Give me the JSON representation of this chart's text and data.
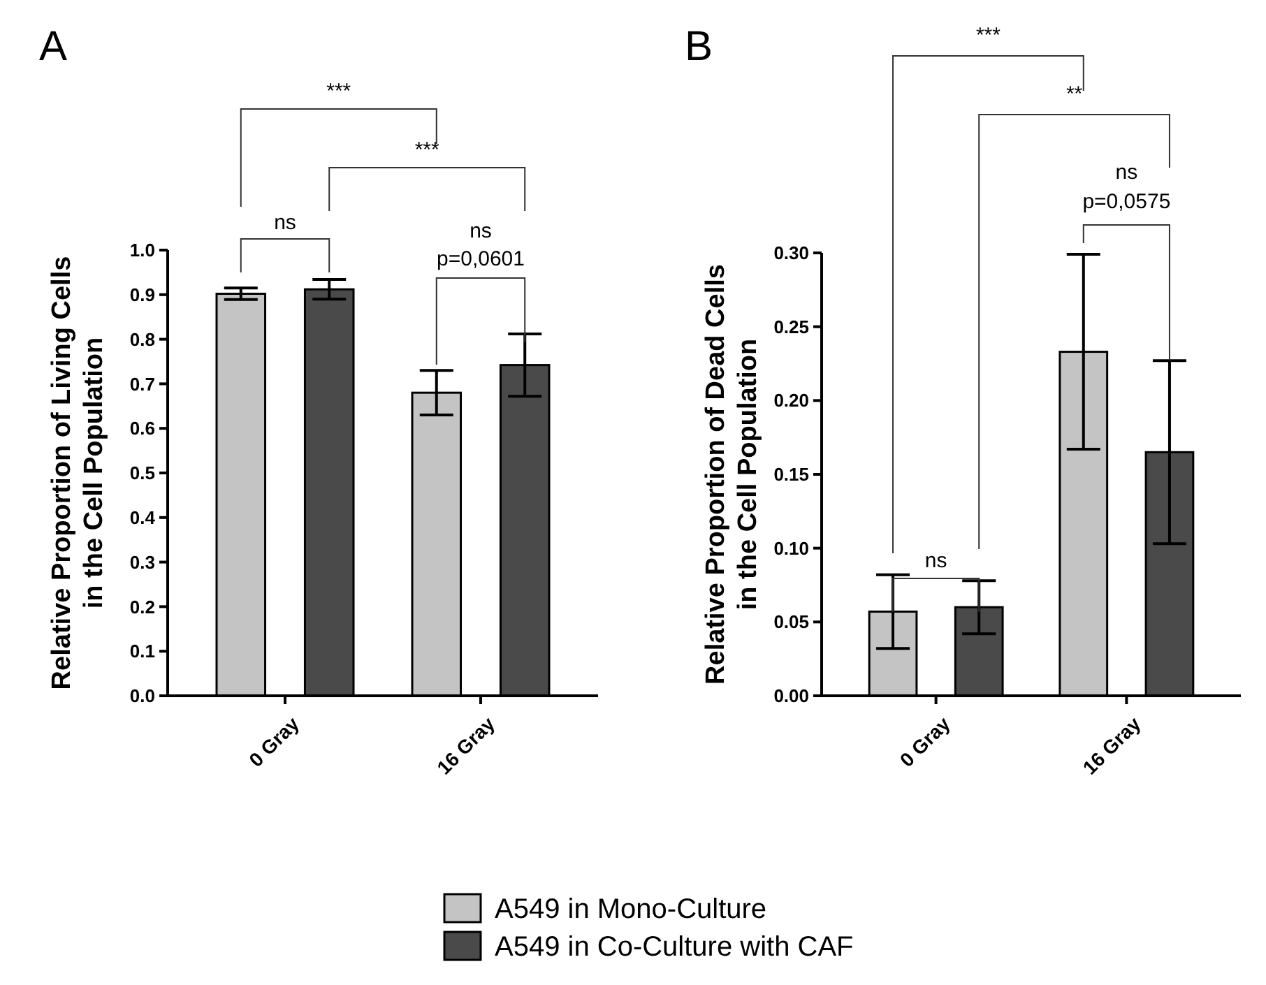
{
  "chart_data": [
    {
      "type": "bar",
      "title": "A",
      "ylabel": "Relative Proportion of Living Cells\nin the Cell Population",
      "categories": [
        "0 Gray",
        "16 Gray"
      ],
      "series": [
        {
          "name": "A549 in Mono-Culture",
          "color": "#c4c4c4",
          "values": [
            0.902,
            0.68
          ],
          "errors": [
            0.013,
            0.05
          ]
        },
        {
          "name": "A549 in Co-Culture with CAF",
          "color": "#4a4a4a",
          "values": [
            0.912,
            0.742
          ],
          "errors": [
            0.022,
            0.07
          ]
        }
      ],
      "ylim": [
        0,
        1
      ],
      "yticks": [
        {
          "value": 0,
          "label": "0.0"
        },
        0.1,
        0.2,
        0.3,
        0.4,
        0.5,
        0.6,
        0.7,
        0.8,
        0.9,
        {
          "value": 1,
          "label": "1.0"
        }
      ],
      "annotations": [
        "***",
        "***",
        "ns",
        "ns",
        "p=0,0601"
      ],
      "legend": "bottom",
      "grid": false
    },
    {
      "type": "bar",
      "title": "B",
      "ylabel": "Relative Proportion of Dead Cells\nin the Cell Population",
      "categories": [
        "0 Gray",
        "16 Gray"
      ],
      "series": [
        {
          "color": "#c4c4c4",
          "values": [
            0.057,
            0.233
          ],
          "errors": [
            0.025,
            0.066
          ]
        },
        {
          "color": "#4a4a4a",
          "values": [
            0.06,
            0.165
          ],
          "errors": [
            0.018,
            0.062
          ]
        }
      ],
      "ylim": [
        0,
        0.3
      ],
      "yticks": [
        {
          "value": 0,
          "label": "0.00"
        },
        0.05,
        {
          "value": 0.1,
          "label": "0.10"
        },
        0.15,
        {
          "value": 0.2,
          "label": "0.20"
        },
        0.25,
        {
          "value": 0.3,
          "label": "0.30"
        }
      ],
      "annotations": [
        "***",
        "**",
        "ns",
        "ns",
        "p=0,0575"
      ],
      "legend": false,
      "grid": false
    }
  ]
}
